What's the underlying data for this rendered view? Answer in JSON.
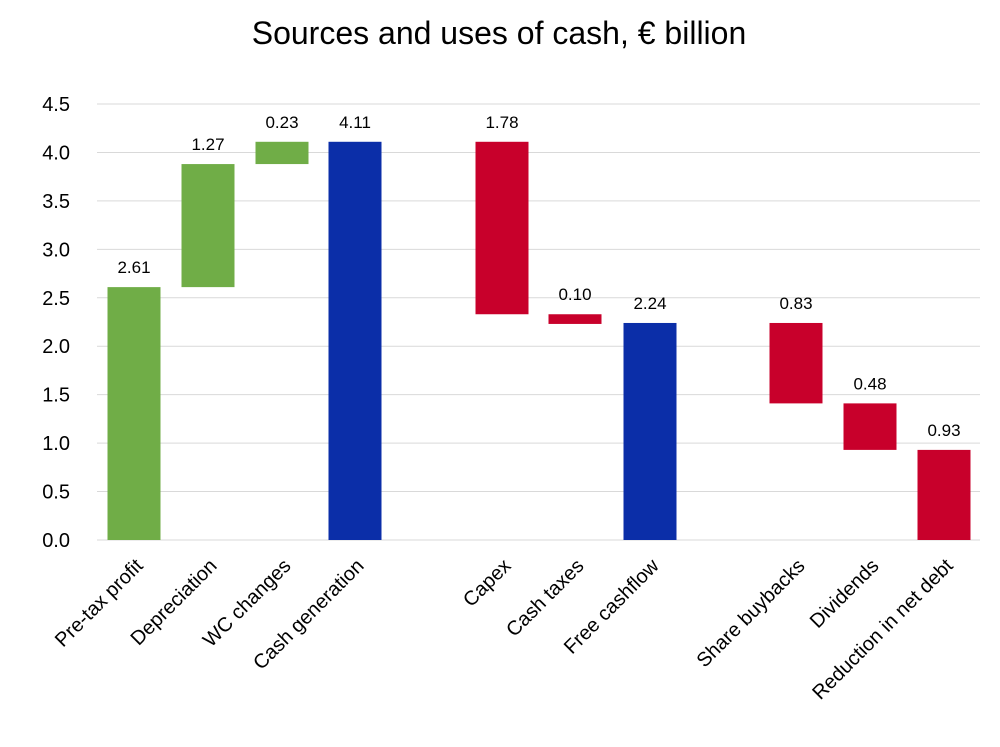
{
  "chart_data": {
    "type": "waterfall",
    "title": "Sources and uses of cash, € billion",
    "xlabel": "",
    "ylabel": "",
    "ylim": [
      0,
      4.5
    ],
    "y_ticks": [
      "0.0",
      "0.5",
      "1.0",
      "1.5",
      "2.0",
      "2.5",
      "3.0",
      "3.5",
      "4.0",
      "4.5"
    ],
    "grid": true,
    "legend": "none",
    "colors": {
      "increase": "#70ad47",
      "total": "#0b2ea8",
      "decrease": "#c8002b",
      "grid": "#d9d9d9"
    },
    "bars": [
      {
        "category": "Pre-tax profit",
        "kind": "increase",
        "bottom": 0,
        "top": 2.61,
        "label": "2.61"
      },
      {
        "category": "Depreciation",
        "kind": "increase",
        "bottom": 2.61,
        "top": 3.88,
        "label": "1.27"
      },
      {
        "category": "WC changes",
        "kind": "increase",
        "bottom": 3.88,
        "top": 4.11,
        "label": "0.23"
      },
      {
        "category": "Cash generation",
        "kind": "total",
        "bottom": 0,
        "top": 4.11,
        "label": "4.11"
      },
      {
        "category": "Capex",
        "kind": "decrease",
        "bottom": 2.33,
        "top": 4.11,
        "label": "1.78"
      },
      {
        "category": "Cash taxes",
        "kind": "decrease",
        "bottom": 2.23,
        "top": 2.33,
        "label": "0.10"
      },
      {
        "category": "Free cashflow",
        "kind": "total",
        "bottom": 0,
        "top": 2.24,
        "label": "2.24"
      },
      {
        "category": "Share buybacks",
        "kind": "decrease",
        "bottom": 1.41,
        "top": 2.24,
        "label": "0.83"
      },
      {
        "category": "Dividends",
        "kind": "decrease",
        "bottom": 0.93,
        "top": 1.41,
        "label": "0.48"
      },
      {
        "category": "Reduction in net debt",
        "kind": "decrease",
        "bottom": 0,
        "top": 0.93,
        "label": "0.93"
      }
    ]
  }
}
